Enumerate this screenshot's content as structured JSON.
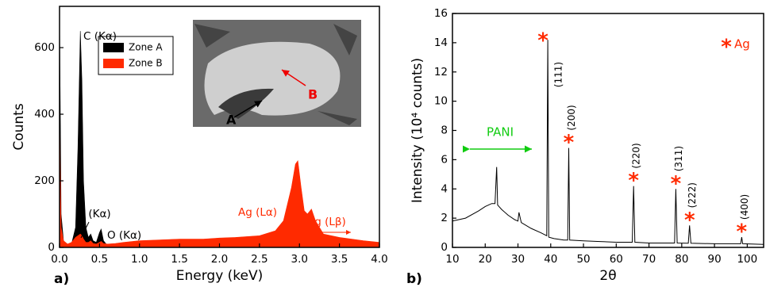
{
  "chart_data": [
    {
      "type": "area",
      "x_label": "Energy (keV)",
      "y_label": "Counts",
      "panel_label": "a)",
      "x": [
        0,
        0.02,
        0.05,
        0.1,
        0.15,
        0.2,
        0.23,
        0.26,
        0.28,
        0.3,
        0.33,
        0.36,
        0.39,
        0.42,
        0.46,
        0.5,
        0.52,
        0.55,
        0.6,
        0.7,
        0.8,
        1.0,
        1.2,
        1.5,
        1.8,
        2.0,
        2.2,
        2.5,
        2.7,
        2.8,
        2.9,
        2.95,
        2.98,
        3.02,
        3.06,
        3.1,
        3.15,
        3.2,
        3.3,
        3.5,
        3.8,
        4.0
      ],
      "series": [
        {
          "name": "Zone A",
          "color": "#000000",
          "values": [
            700,
            100,
            20,
            5,
            10,
            60,
            300,
            650,
            500,
            200,
            60,
            30,
            40,
            20,
            15,
            45,
            55,
            20,
            5,
            3,
            2,
            0,
            0,
            0,
            0,
            0,
            0,
            0,
            0,
            0,
            0,
            0,
            0,
            0,
            0,
            0,
            0,
            0,
            0,
            0,
            0,
            0
          ]
        },
        {
          "name": "Zone B",
          "color": "#ff2a00",
          "values": [
            380,
            60,
            20,
            10,
            15,
            30,
            35,
            40,
            35,
            25,
            15,
            15,
            20,
            12,
            10,
            15,
            18,
            12,
            10,
            12,
            15,
            20,
            22,
            25,
            25,
            28,
            30,
            35,
            50,
            80,
            180,
            250,
            260,
            180,
            110,
            100,
            115,
            80,
            40,
            30,
            20,
            15
          ]
        }
      ],
      "xlim": [
        0,
        4
      ],
      "xticks": [
        {
          "value": 0,
          "label": "0.0"
        },
        {
          "value": 0.5,
          "label": "0.5"
        },
        {
          "value": 1,
          "label": "1.0"
        },
        {
          "value": 1.5,
          "label": "1.5"
        },
        {
          "value": 2,
          "label": "2.0"
        },
        {
          "value": 2.5,
          "label": "2.5"
        },
        {
          "value": 3,
          "label": "3.0"
        },
        {
          "value": 3.5,
          "label": "3.5"
        },
        {
          "value": 4,
          "label": "4.0"
        }
      ],
      "ylim": [
        0,
        724
      ],
      "yticks": [
        0,
        200,
        400,
        600
      ],
      "annotations": [
        "C (Kα)",
        "N (Kα)",
        "O (Kα)",
        "Ag (Lα)",
        "Ag (Lβ)"
      ],
      "inset_labels": [
        "A",
        "B"
      ]
    },
    {
      "type": "line",
      "x_label": "2θ",
      "y_label": "Intensity (10⁴ counts)",
      "panel_label": "b)",
      "x": [
        10,
        14,
        18,
        20,
        22,
        23,
        23.5,
        23.8,
        24.2,
        25,
        27,
        29,
        30,
        30.3,
        31,
        34,
        37,
        38.8,
        39.1,
        39.4,
        41,
        44,
        45.2,
        45.5,
        45.8,
        50,
        55,
        60,
        64.9,
        65.3,
        65.7,
        70,
        75,
        77.8,
        78.2,
        78.6,
        82,
        82.4,
        82.8,
        90,
        98,
        98.3,
        98.6,
        105
      ],
      "series": [
        {
          "name": null,
          "color": "#000000",
          "values": [
            1.8,
            2.0,
            2.5,
            2.8,
            3.0,
            3.0,
            5.5,
            2.9,
            2.8,
            2.6,
            2.2,
            1.9,
            1.8,
            2.4,
            1.7,
            1.3,
            1.0,
            0.8,
            14.2,
            0.7,
            0.6,
            0.5,
            0.5,
            6.8,
            0.5,
            0.45,
            0.4,
            0.35,
            0.35,
            4.2,
            0.35,
            0.3,
            0.3,
            0.3,
            4.0,
            0.3,
            0.28,
            1.5,
            0.28,
            0.25,
            0.25,
            0.7,
            0.25,
            0.2
          ]
        }
      ],
      "xlim": [
        10,
        105
      ],
      "xticks": [
        10,
        20,
        30,
        40,
        50,
        60,
        70,
        80,
        90,
        100
      ],
      "ylim": [
        0,
        16
      ],
      "yticks": [
        0,
        2,
        4,
        6,
        8,
        10,
        12,
        14,
        16
      ],
      "peak_labels": [
        "(111)",
        "(200)",
        "(220)",
        "(311)",
        "(222)",
        "(400)"
      ],
      "annotations": [
        "PANI"
      ],
      "marker": "*",
      "legend_label": "Ag"
    }
  ]
}
